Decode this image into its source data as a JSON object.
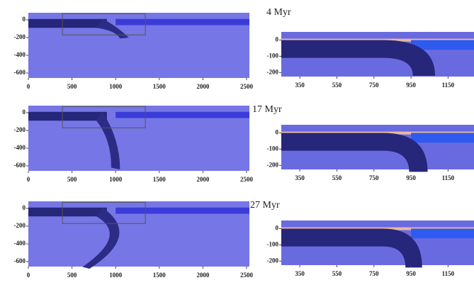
{
  "rows": [
    {
      "label": "4 Myr",
      "left": {
        "xlim": [
          0,
          2500
        ],
        "ylim": [
          -656,
          80
        ],
        "xticks": [
          0,
          500,
          1000,
          1500,
          2000,
          2500
        ],
        "yticks": [
          0,
          -200,
          -400,
          -600
        ]
      },
      "right": {
        "xlim": [
          250,
          1290
        ],
        "ylim": [
          -225,
          50
        ],
        "xticks": [
          350,
          550,
          750,
          950,
          1150
        ],
        "yticks": [
          0,
          -100,
          -200
        ]
      }
    },
    {
      "label": "17 Myr",
      "left": {
        "xlim": [
          0,
          2500
        ],
        "ylim": [
          -656,
          80
        ],
        "xticks": [
          0,
          500,
          1000,
          1500,
          2000,
          2500
        ],
        "yticks": [
          0,
          -200,
          -400,
          -600
        ]
      },
      "right": {
        "xlim": [
          250,
          1290
        ],
        "ylim": [
          -225,
          50
        ],
        "xticks": [
          350,
          550,
          750,
          950,
          1150
        ],
        "yticks": [
          0,
          -100,
          -200
        ]
      }
    },
    {
      "label": "27 Myr",
      "left": {
        "xlim": [
          0,
          2500
        ],
        "ylim": [
          -656,
          80
        ],
        "xticks": [
          0,
          500,
          1000,
          1500,
          2000,
          2500
        ],
        "yticks": [
          0,
          -200,
          -400,
          -600
        ]
      },
      "right": {
        "xlim": [
          250,
          1290
        ],
        "ylim": [
          -225,
          50
        ],
        "xticks": [
          350,
          550,
          750,
          950,
          1150
        ],
        "yticks": [
          0,
          -100,
          -200
        ]
      }
    }
  ]
}
